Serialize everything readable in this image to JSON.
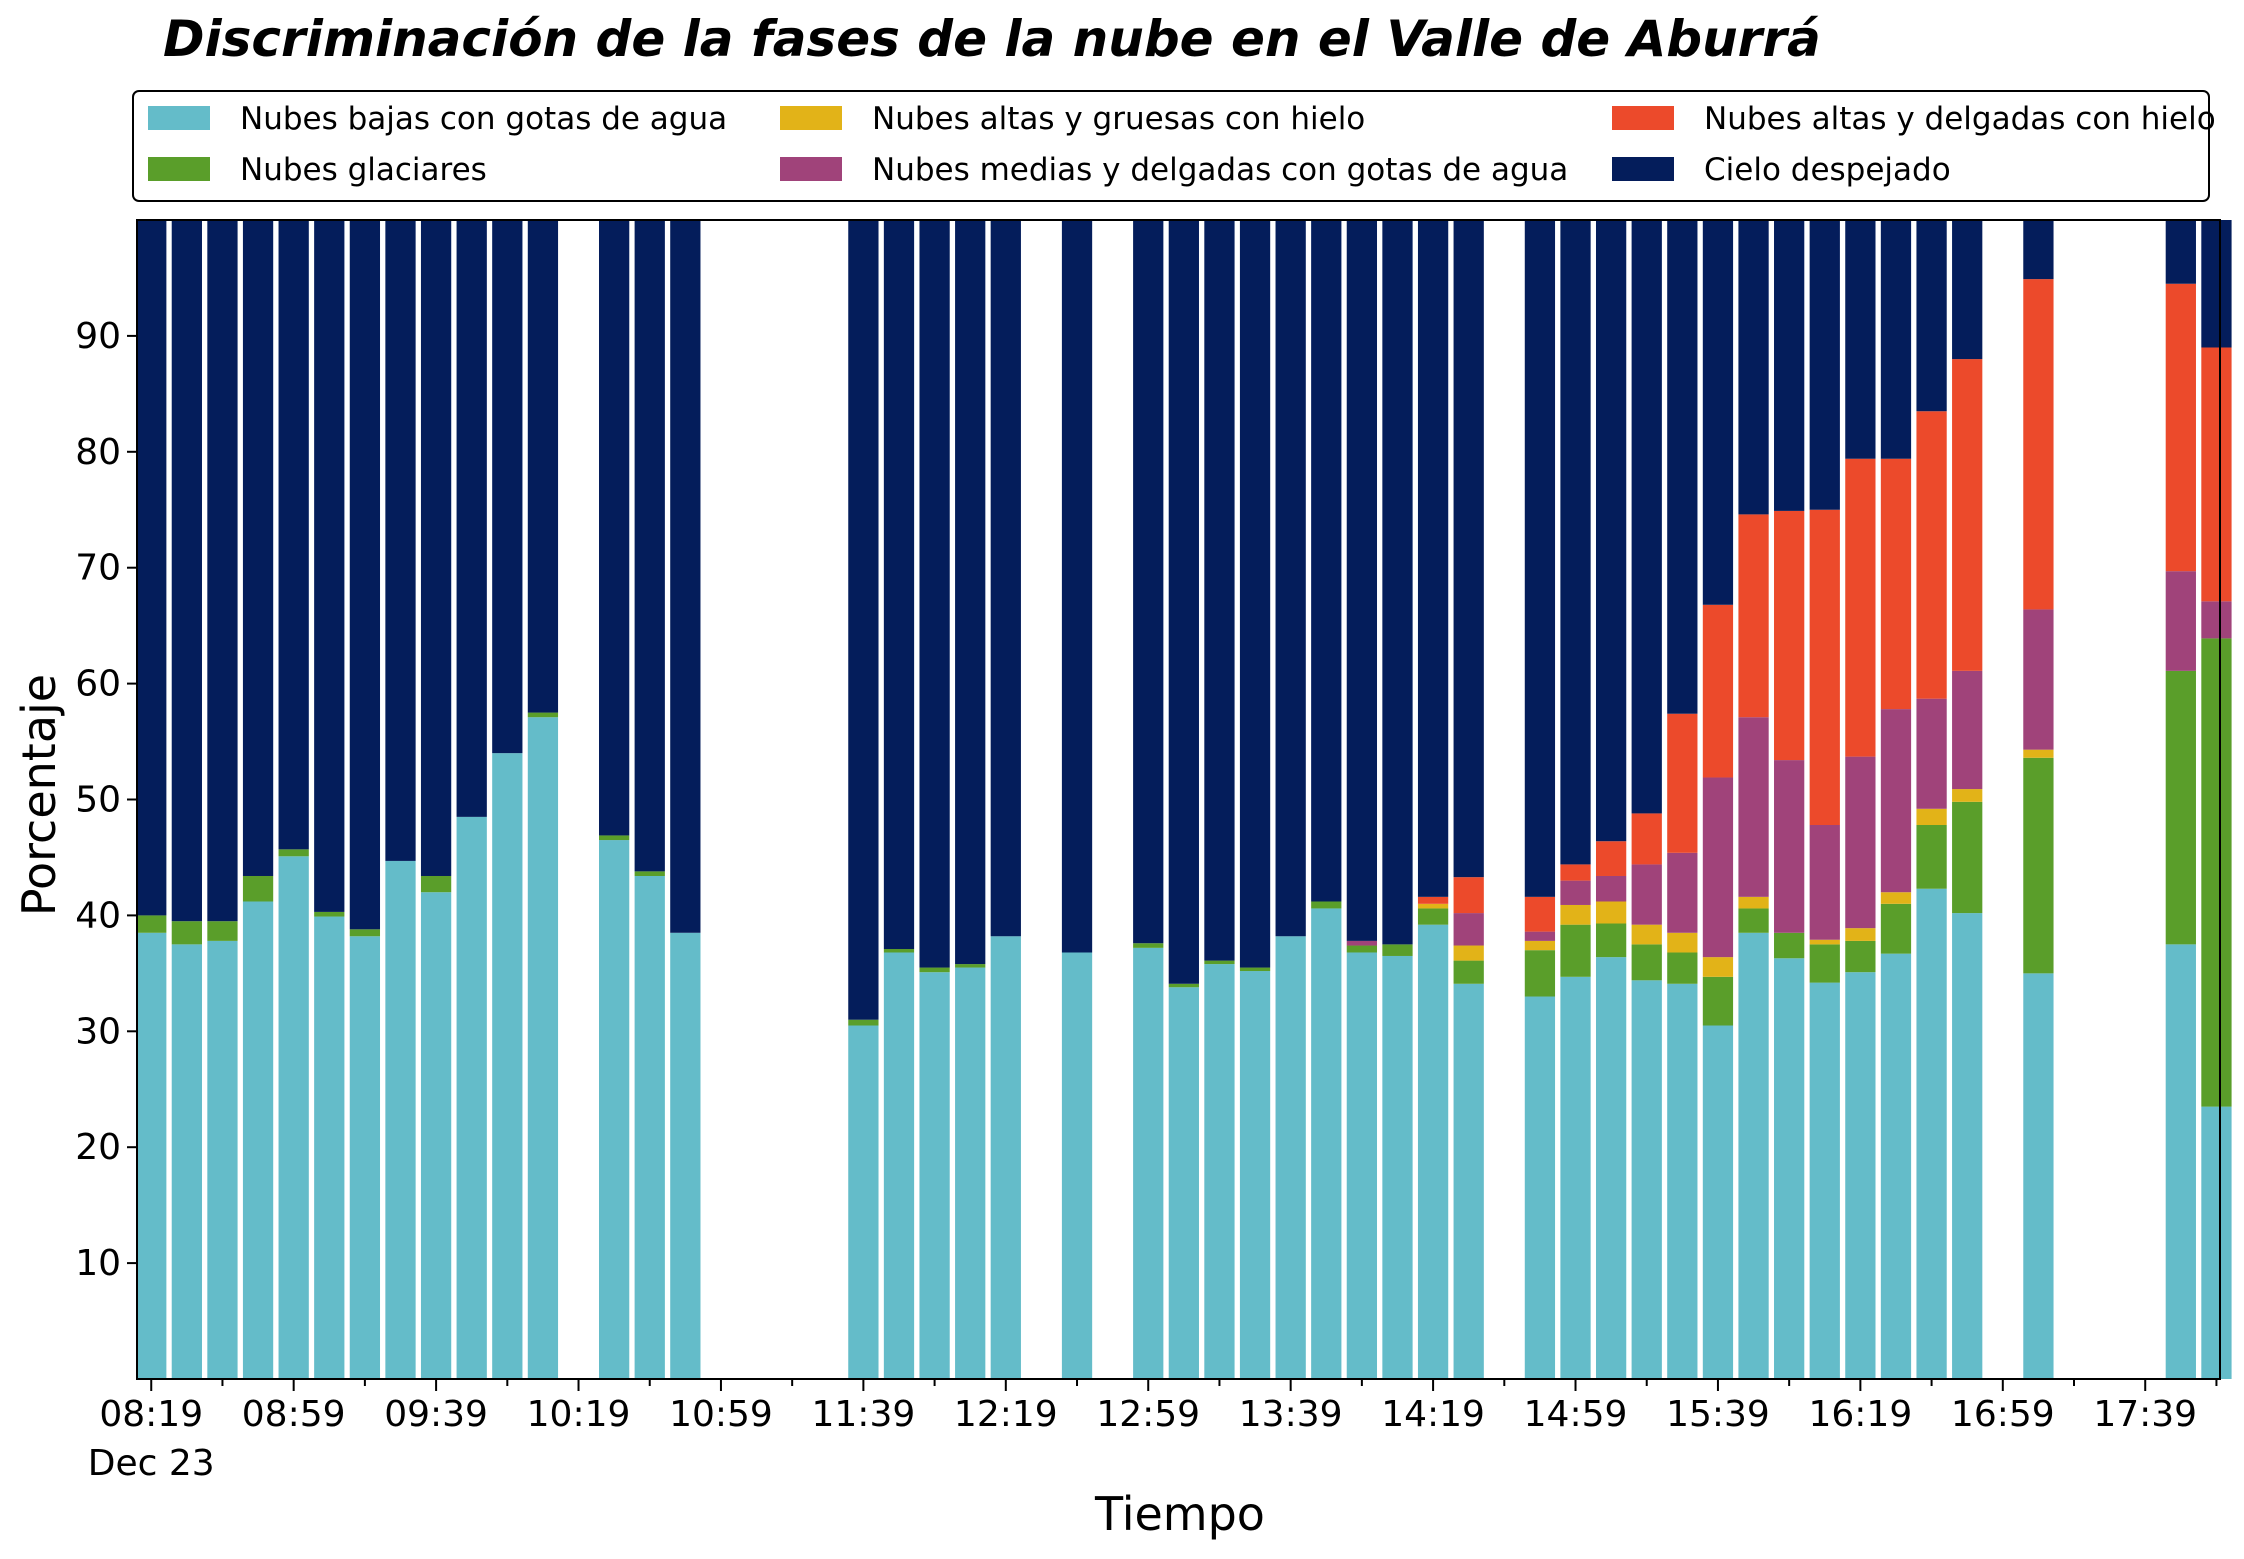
{
  "chart_data": {
    "type": "bar",
    "stacked": true,
    "title": "Discriminación de la fases de la nube en el Valle de Aburrá",
    "xlabel": "Tiempo",
    "ylabel": "Porcentaje",
    "ylim": [
      0,
      100
    ],
    "yticks": [
      10,
      20,
      30,
      40,
      50,
      60,
      70,
      80,
      90
    ],
    "x_start_minutes": 499,
    "x_range_minutes": [
      495,
      1080
    ],
    "bar_step_minutes": 10,
    "xticks": [
      {
        "minutes": 499,
        "label": "08:19",
        "sublabel": "Dec 23"
      },
      {
        "minutes": 539,
        "label": "08:59"
      },
      {
        "minutes": 579,
        "label": "09:39"
      },
      {
        "minutes": 619,
        "label": "10:19"
      },
      {
        "minutes": 659,
        "label": "10:59"
      },
      {
        "minutes": 699,
        "label": "11:39"
      },
      {
        "minutes": 739,
        "label": "12:19"
      },
      {
        "minutes": 779,
        "label": "12:59"
      },
      {
        "minutes": 819,
        "label": "13:39"
      },
      {
        "minutes": 859,
        "label": "14:19"
      },
      {
        "minutes": 899,
        "label": "14:59"
      },
      {
        "minutes": 939,
        "label": "15:39"
      },
      {
        "minutes": 979,
        "label": "16:19"
      },
      {
        "minutes": 1019,
        "label": "16:59"
      },
      {
        "minutes": 1059,
        "label": "17:39"
      }
    ],
    "legend_position": "top",
    "series": [
      {
        "name": "Nubes bajas con gotas de agua",
        "color": "#64bcc9"
      },
      {
        "name": "Nubes glaciares",
        "color": "#5a9e2a"
      },
      {
        "name": "Nubes altas y gruesas con hielo",
        "color": "#e2b318"
      },
      {
        "name": "Nubes medias y delgadas con gotas de agua",
        "color": "#a0437a"
      },
      {
        "name": "Nubes altas y delgadas con hielo",
        "color": "#ec4a2b"
      },
      {
        "name": "Cielo despejado",
        "color": "#041d5b"
      }
    ],
    "bars": [
      {
        "i": 0,
        "v": [
          38.5,
          1.5,
          0,
          0,
          0
        ]
      },
      {
        "i": 1,
        "v": [
          37.5,
          2,
          0,
          0,
          0
        ]
      },
      {
        "i": 2,
        "v": [
          37.8,
          1.7,
          0,
          0,
          0
        ]
      },
      {
        "i": 3,
        "v": [
          41.2,
          2.2,
          0,
          0,
          0
        ]
      },
      {
        "i": 4,
        "v": [
          45.1,
          0.6,
          0,
          0,
          0
        ]
      },
      {
        "i": 5,
        "v": [
          39.9,
          0.4,
          0,
          0,
          0
        ]
      },
      {
        "i": 6,
        "v": [
          38.2,
          0.6,
          0,
          0,
          0
        ]
      },
      {
        "i": 7,
        "v": [
          44.7,
          0,
          0,
          0,
          0
        ]
      },
      {
        "i": 8,
        "v": [
          42,
          1.4,
          0,
          0,
          0
        ]
      },
      {
        "i": 9,
        "v": [
          48.5,
          0,
          0,
          0,
          0
        ]
      },
      {
        "i": 10,
        "v": [
          54,
          0,
          0,
          0,
          0
        ]
      },
      {
        "i": 11,
        "v": [
          57.1,
          0.4,
          0,
          0,
          0
        ]
      },
      {
        "i": 13,
        "v": [
          46.5,
          0.4,
          0,
          0,
          0
        ]
      },
      {
        "i": 14,
        "v": [
          43.4,
          0.4,
          0,
          0,
          0
        ]
      },
      {
        "i": 15,
        "v": [
          38.5,
          0,
          0,
          0,
          0
        ]
      },
      {
        "i": 20,
        "v": [
          30.5,
          0.5,
          0,
          0,
          0
        ]
      },
      {
        "i": 21,
        "v": [
          36.8,
          0.3,
          0,
          0,
          0
        ]
      },
      {
        "i": 22,
        "v": [
          35.1,
          0.4,
          0,
          0,
          0
        ]
      },
      {
        "i": 23,
        "v": [
          35.5,
          0.3,
          0,
          0,
          0
        ]
      },
      {
        "i": 24,
        "v": [
          38.2,
          0,
          0,
          0,
          0
        ]
      },
      {
        "i": 26,
        "v": [
          36.8,
          0,
          0,
          0,
          0
        ]
      },
      {
        "i": 28,
        "v": [
          37.2,
          0.4,
          0,
          0,
          0
        ]
      },
      {
        "i": 29,
        "v": [
          33.8,
          0.3,
          0,
          0,
          0
        ]
      },
      {
        "i": 30,
        "v": [
          35.8,
          0.3,
          0,
          0,
          0
        ]
      },
      {
        "i": 31,
        "v": [
          35.2,
          0.3,
          0,
          0,
          0
        ]
      },
      {
        "i": 32,
        "v": [
          38.2,
          0,
          0,
          0,
          0
        ]
      },
      {
        "i": 33,
        "v": [
          40.6,
          0.6,
          0,
          0,
          0
        ]
      },
      {
        "i": 34,
        "v": [
          36.8,
          0.6,
          0,
          0.4,
          0
        ]
      },
      {
        "i": 35,
        "v": [
          36.5,
          1,
          0,
          0,
          0
        ]
      },
      {
        "i": 36,
        "v": [
          39.2,
          1.4,
          0.4,
          0,
          0.6
        ]
      },
      {
        "i": 37,
        "v": [
          34.1,
          2,
          1.3,
          2.8,
          3.1
        ]
      },
      {
        "i": 39,
        "v": [
          33,
          4,
          0.8,
          0.8,
          3
        ]
      },
      {
        "i": 40,
        "v": [
          34.7,
          4.5,
          1.7,
          2.1,
          1.4
        ]
      },
      {
        "i": 41,
        "v": [
          36.4,
          2.9,
          1.9,
          2.2,
          3
        ]
      },
      {
        "i": 42,
        "v": [
          34.4,
          3.1,
          1.7,
          5.2,
          4.4
        ]
      },
      {
        "i": 43,
        "v": [
          34.1,
          2.7,
          1.7,
          6.9,
          12
        ]
      },
      {
        "i": 44,
        "v": [
          30.5,
          4.2,
          1.7,
          15.5,
          14.9
        ]
      },
      {
        "i": 45,
        "v": [
          38.5,
          2.1,
          1,
          15.5,
          17.5
        ]
      },
      {
        "i": 46,
        "v": [
          36.3,
          2.2,
          0,
          14.9,
          21.5
        ]
      },
      {
        "i": 47,
        "v": [
          34.2,
          3.3,
          0.4,
          9.9,
          27.2
        ]
      },
      {
        "i": 48,
        "v": [
          35.1,
          2.7,
          1.1,
          14.8,
          25.7
        ]
      },
      {
        "i": 49,
        "v": [
          36.7,
          4.3,
          1,
          15.8,
          21.6
        ]
      },
      {
        "i": 50,
        "v": [
          42.3,
          5.5,
          1.4,
          9.5,
          24.8
        ]
      },
      {
        "i": 51,
        "v": [
          40.2,
          9.6,
          1.1,
          10.2,
          26.9
        ]
      },
      {
        "i": 53,
        "v": [
          35,
          18.6,
          0.7,
          12.1,
          28.5
        ]
      },
      {
        "i": 57,
        "v": [
          37.5,
          23.6,
          0,
          8.6,
          24.8
        ]
      },
      {
        "i": 58,
        "v": [
          23.5,
          40.4,
          0,
          3.2,
          21.9
        ]
      }
    ]
  }
}
